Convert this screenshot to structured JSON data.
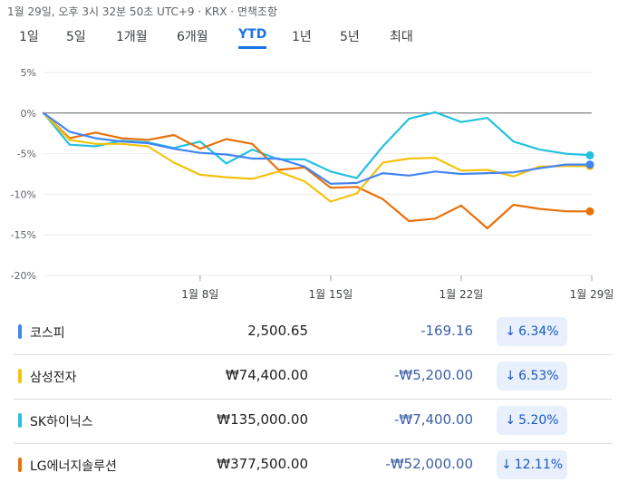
{
  "header": {
    "timestamp": "1월 29일, 오후 3시 32분 50초 UTC+9 · KRX · 면책조항"
  },
  "tabs": [
    {
      "label": "1일",
      "active": false
    },
    {
      "label": "5일",
      "active": false
    },
    {
      "label": "1개월",
      "active": false
    },
    {
      "label": "6개월",
      "active": false
    },
    {
      "label": "YTD",
      "active": true
    },
    {
      "label": "1년",
      "active": false
    },
    {
      "label": "5년",
      "active": false
    },
    {
      "label": "최대",
      "active": false
    }
  ],
  "chart_data": {
    "type": "line",
    "title": "",
    "xlabel": "",
    "ylabel": "",
    "ylim": [
      -20,
      5
    ],
    "y_ticks": [
      5,
      0,
      -5,
      -10,
      -15,
      -20
    ],
    "y_tick_labels": [
      "5%",
      "0%",
      "-5%",
      "-10%",
      "-15%",
      "-20%"
    ],
    "x_ticks": [
      {
        "x": 6,
        "label": "1월 8일"
      },
      {
        "x": 11,
        "label": "1월 15일"
      },
      {
        "x": 16,
        "label": "1월 22일"
      },
      {
        "x": 21,
        "label": "1월 29일"
      }
    ],
    "x_range": [
      0,
      21
    ],
    "baseline": 0,
    "series": [
      {
        "name": "SK하이닉스",
        "color": "#24c1e0",
        "x": [
          0,
          1,
          2,
          3,
          4,
          5,
          6,
          7,
          8,
          9,
          10,
          11,
          12,
          13,
          14,
          15,
          16,
          17,
          18,
          19,
          20,
          21
        ],
        "values": [
          0,
          -3.9,
          -4.1,
          -3.4,
          -3.6,
          -4.3,
          -3.5,
          -6.2,
          -4.5,
          -5.7,
          -5.7,
          -7.2,
          -8,
          -4.1,
          -0.7,
          0.1,
          -1.1,
          -0.6,
          -3.5,
          -4.5,
          -5,
          -5.2
        ]
      },
      {
        "name": "LG에너지솔루션",
        "color": "#e8710a",
        "x": [
          0,
          1,
          2,
          3,
          4,
          5,
          6,
          7,
          8,
          9,
          10,
          11,
          12,
          13,
          14,
          15,
          16,
          17,
          18,
          19,
          20,
          21
        ],
        "values": [
          0,
          -3.1,
          -2.4,
          -3.1,
          -3.3,
          -2.7,
          -4.4,
          -3.2,
          -3.8,
          -7,
          -6.7,
          -9.2,
          -9.1,
          -10.6,
          -13.3,
          -13,
          -11.4,
          -14.2,
          -11.3,
          -11.8,
          -12.1,
          -12.11
        ]
      },
      {
        "name": "삼성전자",
        "color": "#f4c20d",
        "x": [
          0,
          1,
          2,
          3,
          4,
          5,
          6,
          7,
          8,
          9,
          10,
          11,
          12,
          13,
          14,
          15,
          16,
          17,
          18,
          19,
          20,
          21
        ],
        "values": [
          0,
          -3.3,
          -3.8,
          -3.8,
          -4.1,
          -6.1,
          -7.6,
          -7.9,
          -8.1,
          -7.2,
          -8.4,
          -10.9,
          -9.9,
          -6.1,
          -5.6,
          -5.5,
          -7.1,
          -7,
          -7.8,
          -6.6,
          -6.53,
          -6.53
        ]
      },
      {
        "name": "코스피",
        "color": "#4285f4",
        "x": [
          0,
          1,
          2,
          3,
          4,
          5,
          6,
          7,
          8,
          9,
          10,
          11,
          12,
          13,
          14,
          15,
          16,
          17,
          18,
          19,
          20,
          21
        ],
        "values": [
          0,
          -2.3,
          -3.1,
          -3.5,
          -3.7,
          -4.4,
          -4.9,
          -5.1,
          -5.6,
          -5.6,
          -6.6,
          -8.7,
          -8.6,
          -7.4,
          -7.7,
          -7.2,
          -7.5,
          -7.4,
          -7.3,
          -6.8,
          -6.34,
          -6.34
        ]
      }
    ]
  },
  "legend": [
    {
      "name": "코스피",
      "color": "#4285f4",
      "price": "2,500.65",
      "change": "-169.16",
      "percent": "6.34%",
      "arrow": "↓"
    },
    {
      "name": "삼성전자",
      "color": "#f4c20d",
      "price": "₩74,400.00",
      "change": "-₩5,200.00",
      "percent": "6.53%",
      "arrow": "↓"
    },
    {
      "name": "SK하이닉스",
      "color": "#24c1e0",
      "price": "₩135,000.00",
      "change": "-₩7,400.00",
      "percent": "5.20%",
      "arrow": "↓"
    },
    {
      "name": "LG에너지솔루션",
      "color": "#e8710a",
      "price": "₩377,500.00",
      "change": "-₩52,000.00",
      "percent": "12.11%",
      "arrow": "↓"
    }
  ]
}
